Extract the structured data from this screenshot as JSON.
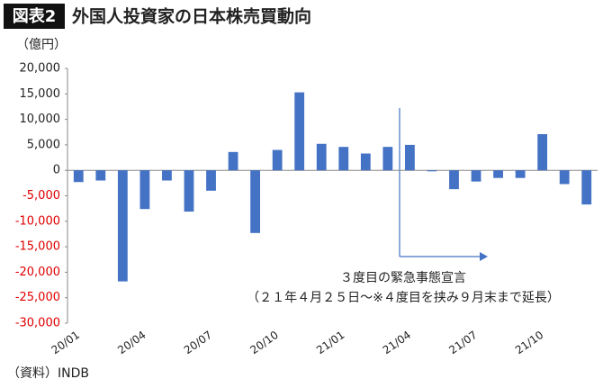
{
  "chart_data": {
    "type": "bar",
    "badge": "図表2",
    "title": "外国人投資家の日本株売買動向",
    "y_unit": "（億円）",
    "source": "（資料）INDB",
    "annotations": [
      "３度目の緊急事態宣言",
      "（２１年４月２５日〜※４度目を挟み９月末まで延長）"
    ],
    "categories": [
      "20/01",
      null,
      null,
      "20/04",
      null,
      null,
      "20/07",
      null,
      null,
      "20/10",
      null,
      null,
      "21/01",
      null,
      null,
      "21/04",
      null,
      null,
      "21/07",
      null,
      null,
      "21/10",
      null,
      null
    ],
    "values": [
      -2300,
      -2000,
      -21800,
      -7600,
      -2000,
      -8100,
      -4000,
      3600,
      -12300,
      4000,
      15300,
      5200,
      4600,
      3300,
      4600,
      5000,
      -200,
      -3700,
      -2200,
      -1500,
      -1500,
      7100,
      -2700,
      -6700
    ],
    "color": "#4472c4",
    "negative_tick_color": "#e00000",
    "ylim": [
      -30000,
      20000
    ],
    "yticks": [
      {
        "value": 20000,
        "label": "20,000"
      },
      {
        "value": 15000,
        "label": "15,000"
      },
      {
        "value": 10000,
        "label": "10,000"
      },
      {
        "value": 5000,
        "label": "5,000"
      },
      0,
      {
        "value": -5000,
        "label": "-5,000"
      },
      {
        "value": -10000,
        "label": "-10,000"
      },
      {
        "value": -15000,
        "label": "-15,000"
      },
      {
        "value": -20000,
        "label": "-20,000"
      },
      {
        "value": -25000,
        "label": "-25,000"
      },
      {
        "value": -30000,
        "label": "-30,000"
      }
    ],
    "grid": false
  }
}
